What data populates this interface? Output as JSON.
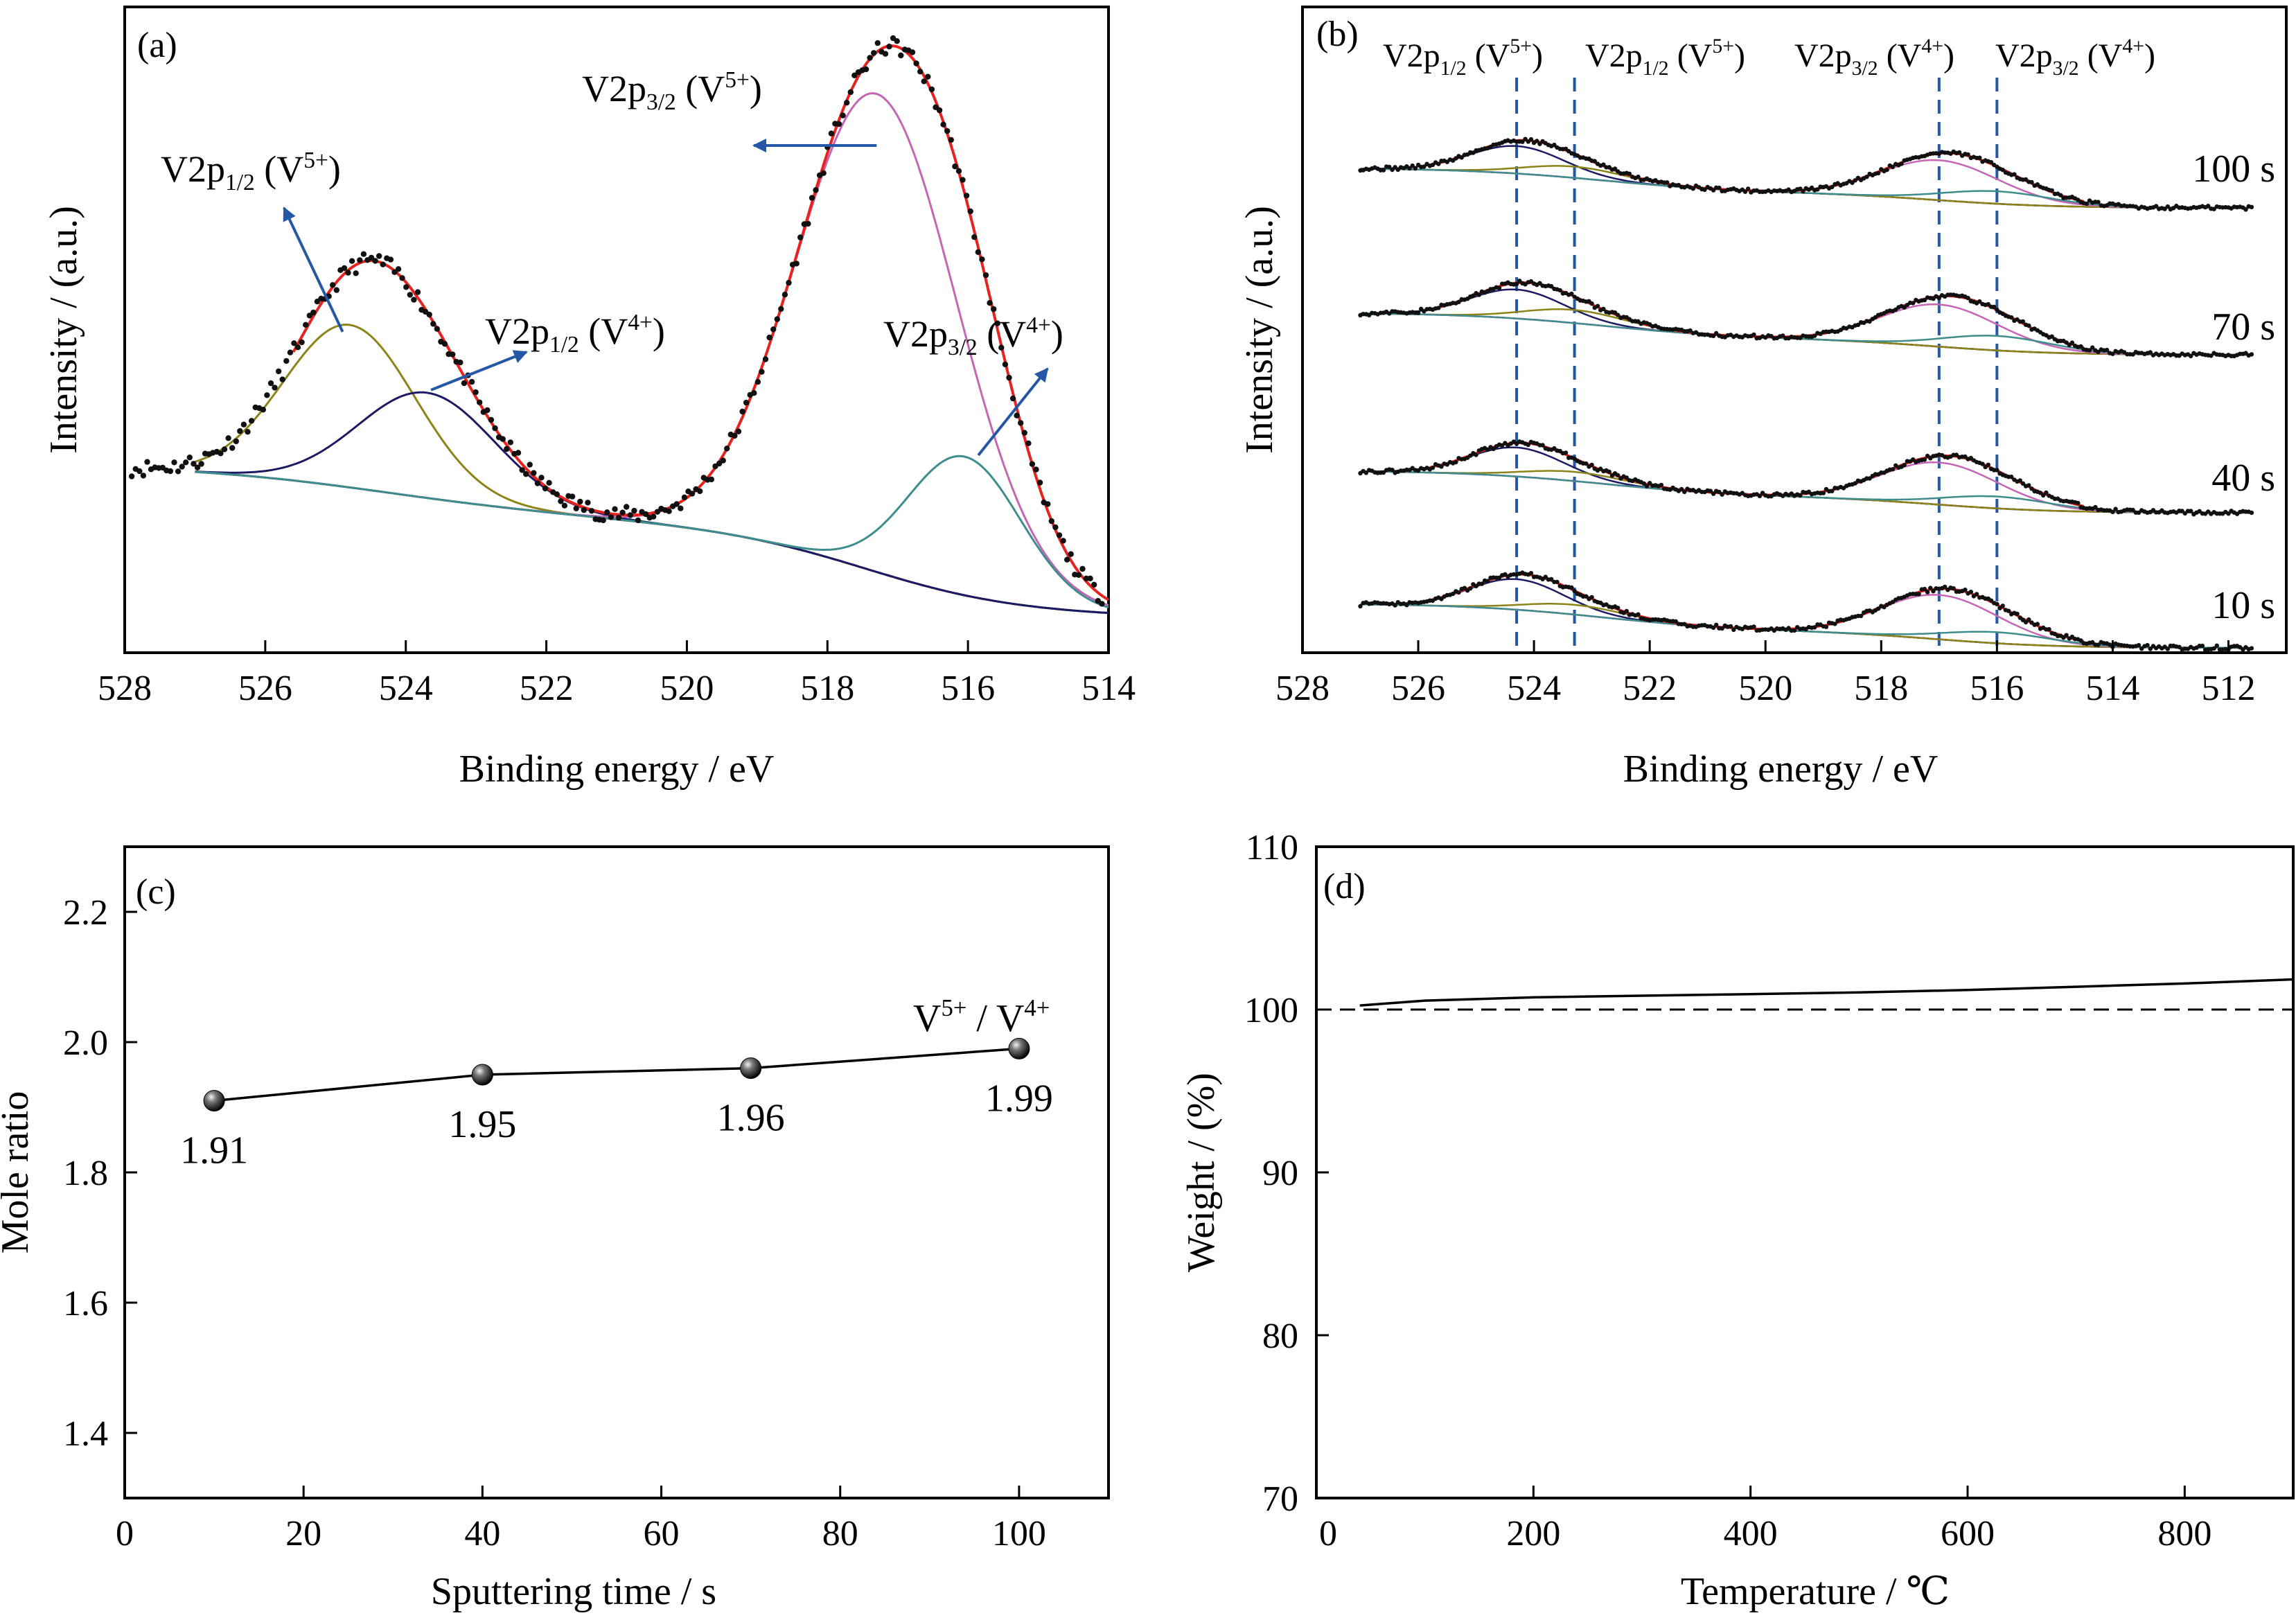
{
  "colors": {
    "data_points": "#111111",
    "total_fit": "#e8231f",
    "background": "#1c1a63",
    "v5_p32": "#c466b4",
    "v4_p32": "#3f8c8c",
    "v5_p12": "#8c8319",
    "v4_p12": "#1c1a63",
    "arrow": "#2458a6",
    "guide": "#2458a6"
  },
  "chart_data": [
    {
      "panel": "(a)",
      "type": "line",
      "xlabel": "Binding energy / eV",
      "ylabel": "Intensity / (a.u.)",
      "xlim": [
        528,
        514
      ],
      "x_reversed": true,
      "x_ticks": [
        "528",
        "526",
        "524",
        "522",
        "520",
        "518",
        "516",
        "514"
      ],
      "peaks": [
        {
          "name": "V2p1/2 (V5+)",
          "center": 524.8,
          "fwhm": 2.2,
          "height": 0.34
        },
        {
          "name": "V2p1/2 (V4+)",
          "center": 523.7,
          "fwhm": 2.3,
          "height": 0.22
        },
        {
          "name": "V2p3/2 (V5+)",
          "center": 517.3,
          "fwhm": 2.7,
          "height": 1.0
        },
        {
          "name": "V2p3/2 (V4+)",
          "center": 516.05,
          "fwhm": 1.9,
          "height": 0.29
        }
      ],
      "annotations": [
        {
          "base": "V2p",
          "sub": "1/2",
          "ion": "V",
          "sup": "5+"
        },
        {
          "base": "V2p",
          "sub": "1/2",
          "ion": "V",
          "sup": "4+"
        },
        {
          "base": "V2p",
          "sub": "3/2",
          "ion": "V",
          "sup": "5+"
        },
        {
          "base": "V2p",
          "sub": "3/2",
          "ion": "V",
          "sup": "4+"
        }
      ]
    },
    {
      "panel": "(b)",
      "type": "line",
      "xlabel": "Binding energy / eV",
      "ylabel": "Intensity / (a.u.)",
      "xlim": [
        528,
        511
      ],
      "x_reversed": true,
      "x_ticks": [
        "528",
        "526",
        "524",
        "522",
        "520",
        "518",
        "516",
        "514",
        "512"
      ],
      "guide_lines_eV": [
        524.3,
        523.3,
        517.0,
        516.0
      ],
      "series": [
        {
          "name": "100 s",
          "peaks": [
            524.3,
            523.3,
            517.0,
            516.0
          ]
        },
        {
          "name": "70 s",
          "peaks": [
            524.3,
            523.3,
            517.0,
            516.0
          ]
        },
        {
          "name": "40 s",
          "peaks": [
            524.3,
            523.3,
            517.0,
            516.0
          ]
        },
        {
          "name": "10 s",
          "peaks": [
            524.3,
            523.3,
            517.0,
            516.0
          ]
        }
      ],
      "annotations": [
        {
          "base": "V2p",
          "sub": "1/2",
          "ion": "V",
          "sup": "5+"
        },
        {
          "base": "V2p",
          "sub": "1/2",
          "ion": "V",
          "sup": "5+"
        },
        {
          "base": "V2p",
          "sub": "3/2",
          "ion": "V",
          "sup": "4+"
        },
        {
          "base": "V2p",
          "sub": "3/2",
          "ion": "V",
          "sup": "4+"
        }
      ]
    },
    {
      "panel": "(c)",
      "type": "line",
      "xlabel": "Sputtering time / s",
      "ylabel": "Mole ratio",
      "xlim": [
        0,
        110
      ],
      "ylim": [
        1.3,
        2.3
      ],
      "x_ticks": [
        0,
        20,
        40,
        60,
        80,
        100
      ],
      "y_ticks": [
        "1.4",
        "1.6",
        "1.8",
        "2.0",
        "2.2"
      ],
      "series": [
        {
          "legend": {
            "ion1": "V",
            "sup1": "5+",
            "sep": " / ",
            "ion2": "V",
            "sup2": "4+"
          },
          "x": [
            10,
            40,
            70,
            100
          ],
          "y": [
            1.91,
            1.95,
            1.96,
            1.99
          ],
          "labels": [
            "1.91",
            "1.95",
            "1.96",
            "1.99"
          ]
        }
      ]
    },
    {
      "panel": "(d)",
      "type": "line",
      "xlabel": "Temperature / ℃",
      "ylabel": "Weight / (%)",
      "xlim": [
        0,
        900
      ],
      "ylim": [
        70,
        110
      ],
      "x_ticks": [
        "0",
        "200",
        "400",
        "600",
        "800"
      ],
      "y_ticks": [
        "70",
        "80",
        "90",
        "100",
        "110"
      ],
      "reference_line_y": 100,
      "series": [
        {
          "x": [
            40,
            100,
            200,
            300,
            400,
            500,
            600,
            700,
            800,
            900
          ],
          "y": [
            100.25,
            100.55,
            100.75,
            100.85,
            100.95,
            101.05,
            101.2,
            101.4,
            101.6,
            101.85
          ]
        }
      ]
    }
  ]
}
